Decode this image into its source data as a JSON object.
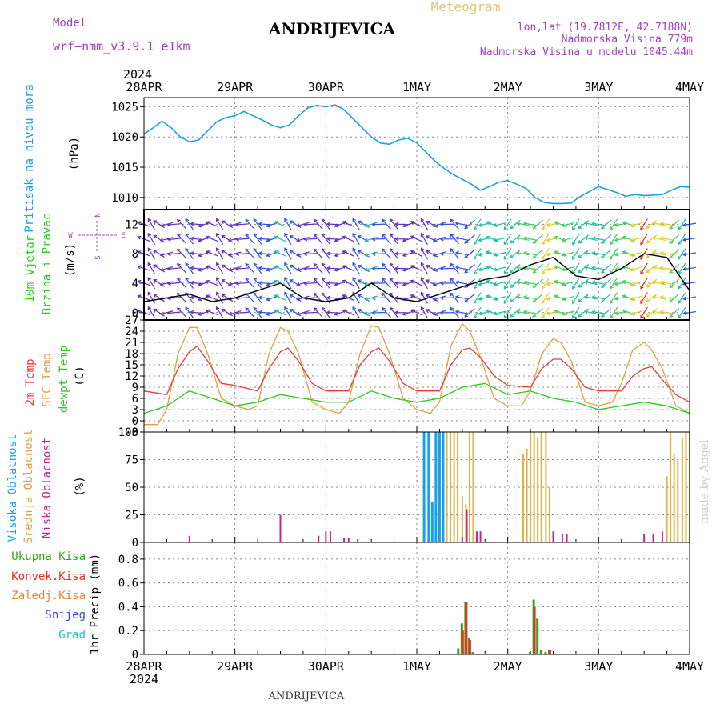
{
  "header": {
    "model_label": "Model",
    "model_name": "wrf−nmm_v3.9.1  e1km",
    "station": "ANDRIJEVICA",
    "chart_type": "Meteogram",
    "lonlat": "lon,lat (19.7812E, 42.7188N)",
    "elevation": "Nadmorska Visina 779m",
    "model_elevation": "Nadmorska Visina u modelu 1045.44m",
    "credit": "made by Angel",
    "footer_station": "ANDRIJEVICA"
  },
  "time_axis": {
    "year": "2024",
    "ticks": [
      "28APR",
      "29APR",
      "30APR",
      "1MAY",
      "2MAY",
      "3MAY",
      "4MAY"
    ]
  },
  "colors": {
    "pressure": "#1aa0e6",
    "wind_speed": "#000000",
    "wind_gust": "#e83020",
    "temp2m": "#e83a3a",
    "sfc_temp": "#e0a040",
    "dewpoint": "#2ec820",
    "high_cloud": "#1aa0e6",
    "mid_cloud": "#e0b040",
    "low_cloud": "#d0208a",
    "total_precip": "#38a020",
    "conv_precip": "#e83020",
    "frozen_precip": "#f08030",
    "snow": "#4040e0",
    "graupel": "#20c0c0",
    "wind_legend": "#a040c0",
    "grid": "#888888"
  },
  "chart_data": [
    {
      "type": "line",
      "id": "pressure",
      "ylabel_title": "Pritisak na nivou mora",
      "ylabel_unit": "(hPa)",
      "ylim": [
        1008,
        1026.5
      ],
      "yticks": [
        "1010",
        "1015",
        "1020",
        "1025"
      ],
      "ytick_values": [
        1010,
        1015,
        1020,
        1025
      ],
      "grid": true,
      "series": [
        {
          "x_days": [
            0,
            0.1,
            0.2,
            0.3,
            0.4,
            0.5,
            0.6,
            0.7,
            0.8,
            0.9,
            1.0,
            1.1,
            1.2,
            1.3,
            1.4,
            1.5,
            1.6,
            1.7,
            1.8,
            1.9,
            2.0,
            2.1,
            2.2,
            2.3,
            2.4,
            2.5,
            2.6,
            2.7,
            2.8,
            2.9,
            3.0,
            3.1,
            3.2,
            3.3,
            3.4,
            3.5,
            3.6,
            3.7,
            3.8,
            3.9,
            4.0,
            4.1,
            4.2,
            4.3,
            4.4,
            4.5,
            4.6,
            4.7,
            4.8,
            4.9,
            5.0,
            5.1,
            5.2,
            5.3,
            5.4,
            5.5,
            5.6,
            5.7,
            5.8,
            5.9,
            6.0
          ],
          "values": [
            1020.5,
            1021.5,
            1022.6,
            1021.5,
            1020.0,
            1019.2,
            1019.5,
            1021.0,
            1022.5,
            1023.2,
            1023.5,
            1024.2,
            1023.5,
            1022.8,
            1022.0,
            1021.5,
            1022.0,
            1023.5,
            1024.8,
            1025.2,
            1025.0,
            1025.3,
            1024.5,
            1023.0,
            1021.5,
            1020.0,
            1019.0,
            1018.8,
            1019.5,
            1019.8,
            1019.0,
            1017.5,
            1016.0,
            1014.8,
            1013.8,
            1013.0,
            1012.2,
            1011.2,
            1011.8,
            1012.5,
            1012.8,
            1012.2,
            1011.5,
            1010.0,
            1009.2,
            1009.0,
            1009.0,
            1009.1,
            1010.2,
            1011.0,
            1011.8,
            1011.3,
            1010.8,
            1010.2,
            1010.5,
            1010.3,
            1010.4,
            1010.5,
            1011.2,
            1011.8,
            1011.7
          ]
        }
      ]
    },
    {
      "type": "line",
      "id": "wind",
      "ylabel_title_1": "10m Vjetar",
      "ylabel_title_2": "Brzina i Pravac",
      "ylabel_unit": "(m/s)",
      "compass_n": "N",
      "compass_s": "S",
      "compass_e": "E",
      "compass_w": "W",
      "ylim": [
        -1,
        14
      ],
      "yticks": [
        "0",
        "4",
        "8",
        "12"
      ],
      "ytick_values": [
        0,
        4,
        8,
        12
      ],
      "grid": true,
      "series": [
        {
          "name": "speed",
          "x_days": [
            0,
            0.25,
            0.5,
            0.75,
            1.0,
            1.25,
            1.5,
            1.75,
            2.0,
            2.25,
            2.5,
            2.75,
            3.0,
            3.25,
            3.5,
            3.75,
            4.0,
            4.25,
            4.5,
            4.75,
            5.0,
            5.25,
            5.5,
            5.75,
            6.0
          ],
          "values": [
            1.5,
            2.0,
            2.5,
            1.5,
            2.0,
            3.0,
            4.0,
            2.0,
            1.5,
            2.0,
            4.0,
            2.0,
            1.5,
            2.5,
            3.5,
            4.5,
            5.0,
            6.5,
            7.5,
            5.0,
            4.5,
            6.0,
            8.0,
            7.5,
            3.0
          ]
        }
      ]
    },
    {
      "type": "line",
      "id": "temperature",
      "ylabel_1": "2m Temp",
      "ylabel_2": "SFC Temp",
      "ylabel_3": "dewpt Temp",
      "ylabel_unit": "(C)",
      "ylim": [
        -3,
        27
      ],
      "yticks": [
        "-3",
        "0",
        "3",
        "6",
        "9",
        "12",
        "15",
        "18",
        "21",
        "24",
        "27"
      ],
      "ytick_values": [
        -3,
        0,
        3,
        6,
        9,
        12,
        15,
        18,
        21,
        24,
        27
      ],
      "grid": true,
      "series": [
        {
          "name": "2m Temp",
          "x_days": [
            0,
            0.25,
            0.375,
            0.5,
            0.583,
            0.7,
            0.85,
            1.0,
            1.25,
            1.375,
            1.5,
            1.583,
            1.7,
            1.85,
            2.0,
            2.25,
            2.375,
            2.5,
            2.583,
            2.7,
            2.85,
            3.0,
            3.25,
            3.375,
            3.5,
            3.583,
            3.7,
            3.85,
            4.0,
            4.25,
            4.375,
            4.5,
            4.583,
            4.7,
            4.85,
            5.0,
            5.25,
            5.375,
            5.5,
            5.583,
            5.7,
            5.85,
            6.0
          ],
          "values": [
            8,
            7,
            14,
            18.5,
            20,
            16,
            10,
            9.5,
            8,
            14,
            18.5,
            19.5,
            16,
            10,
            8,
            8,
            15,
            18.5,
            19.5,
            16,
            10,
            8,
            8,
            15,
            19,
            19.5,
            17,
            12,
            9.5,
            9,
            14,
            16.5,
            16.5,
            14,
            9,
            8,
            8,
            12,
            14,
            14.5,
            11,
            7,
            5
          ]
        },
        {
          "name": "SFC Temp",
          "x_days": [
            0,
            0.15,
            0.25,
            0.375,
            0.5,
            0.583,
            0.7,
            0.85,
            1.0,
            1.15,
            1.25,
            1.375,
            1.5,
            1.583,
            1.7,
            1.85,
            2.0,
            2.15,
            2.25,
            2.375,
            2.5,
            2.583,
            2.7,
            2.85,
            3.0,
            3.15,
            3.25,
            3.375,
            3.5,
            3.583,
            3.7,
            3.85,
            4.0,
            4.15,
            4.25,
            4.375,
            4.5,
            4.583,
            4.7,
            4.85,
            5.0,
            5.15,
            5.25,
            5.375,
            5.5,
            5.583,
            5.7,
            5.85,
            6.0
          ],
          "values": [
            -1,
            -1,
            3,
            18,
            25,
            25,
            18,
            6,
            4,
            3,
            4,
            18,
            25,
            24,
            18,
            5,
            3,
            2,
            5,
            18,
            25.5,
            25,
            18,
            6,
            3,
            2,
            5,
            20,
            26,
            24,
            17,
            6,
            4,
            4,
            8,
            18,
            22,
            21,
            16,
            5,
            4,
            5,
            10,
            19,
            21,
            19,
            14,
            4,
            2
          ]
        },
        {
          "name": "dewpt Temp",
          "x_days": [
            0,
            0.25,
            0.5,
            0.75,
            1.0,
            1.25,
            1.5,
            1.75,
            2.0,
            2.25,
            2.5,
            2.75,
            3.0,
            3.25,
            3.5,
            3.75,
            4.0,
            4.25,
            4.5,
            4.75,
            5.0,
            5.25,
            5.5,
            5.75,
            6.0
          ],
          "values": [
            2,
            4,
            8,
            6,
            4,
            5,
            7,
            6,
            5,
            5,
            8,
            6,
            5,
            6,
            9,
            10,
            7,
            8,
            6,
            5,
            3,
            4,
            5,
            4,
            2
          ]
        }
      ]
    },
    {
      "type": "bar",
      "id": "cloud",
      "ylabel_1": "Visoka Oblacnost",
      "ylabel_2": "Srednja Oblacnost",
      "ylabel_3": "Niska Oblacnost",
      "ylabel_unit": "(%)",
      "ylim": [
        0,
        100
      ],
      "yticks": [
        "0",
        "25",
        "50",
        "75",
        "100"
      ],
      "ytick_values": [
        0,
        25,
        50,
        75,
        100
      ],
      "grid": true,
      "series": [
        {
          "name": "Visoka",
          "x_days": [
            3.08,
            3.13,
            3.17,
            3.21,
            3.25,
            3.29
          ],
          "values": [
            100,
            100,
            37,
            100,
            100,
            100
          ]
        },
        {
          "name": "Srednja",
          "x_days": [
            3.33,
            3.37,
            3.41,
            3.45,
            3.5,
            3.54,
            3.58,
            3.62,
            4.17,
            4.21,
            4.25,
            4.29,
            4.33,
            4.37,
            4.42,
            4.46,
            5.75,
            5.79,
            5.83,
            5.87,
            5.92,
            5.96,
            6.0
          ],
          "values": [
            100,
            100,
            100,
            100,
            42,
            35,
            100,
            100,
            80,
            85,
            100,
            100,
            95,
            100,
            100,
            50,
            60,
            100,
            80,
            75,
            95,
            100,
            100
          ]
        },
        {
          "name": "Niska",
          "x_days": [
            0.5,
            1.5,
            1.92,
            2.0,
            2.05,
            2.2,
            2.25,
            2.35,
            3.5,
            3.55,
            3.66,
            3.7,
            4.5,
            4.6,
            4.65,
            5.5,
            5.6,
            5.7
          ],
          "values": [
            6,
            25,
            6,
            10,
            10,
            4,
            4,
            3,
            5,
            30,
            10,
            10,
            10,
            8,
            8,
            8,
            8,
            10
          ]
        }
      ]
    },
    {
      "type": "bar",
      "id": "precip",
      "ylabel_title": "1hr Precip",
      "ylabel_unit": "(mm)",
      "legend": [
        "Ukupna Kisa",
        "Konvek.Kisa",
        "Zaledj.Kisa",
        "Snijeg",
        "Grad"
      ],
      "ylim": [
        0,
        0.94
      ],
      "yticks": [
        "0",
        "0.2",
        "0.4",
        "0.6",
        "0.8"
      ],
      "ytick_values": [
        0,
        0.2,
        0.4,
        0.6,
        0.8
      ],
      "grid": true,
      "series": [
        {
          "name": "Ukupna Kisa",
          "x_days": [
            3.46,
            3.5,
            3.54,
            3.58,
            3.62,
            4.25,
            4.29,
            4.33,
            4.37,
            4.42,
            4.46
          ],
          "values": [
            0.05,
            0.26,
            0.44,
            0.14,
            0.02,
            0.02,
            0.46,
            0.3,
            0.04,
            0.02,
            0.04
          ]
        },
        {
          "name": "Konvek.Kisa",
          "x_days": [
            3.5,
            3.54,
            3.58,
            4.29,
            4.46
          ],
          "values": [
            0.2,
            0.44,
            0.12,
            0.4,
            0.04
          ]
        }
      ]
    }
  ]
}
